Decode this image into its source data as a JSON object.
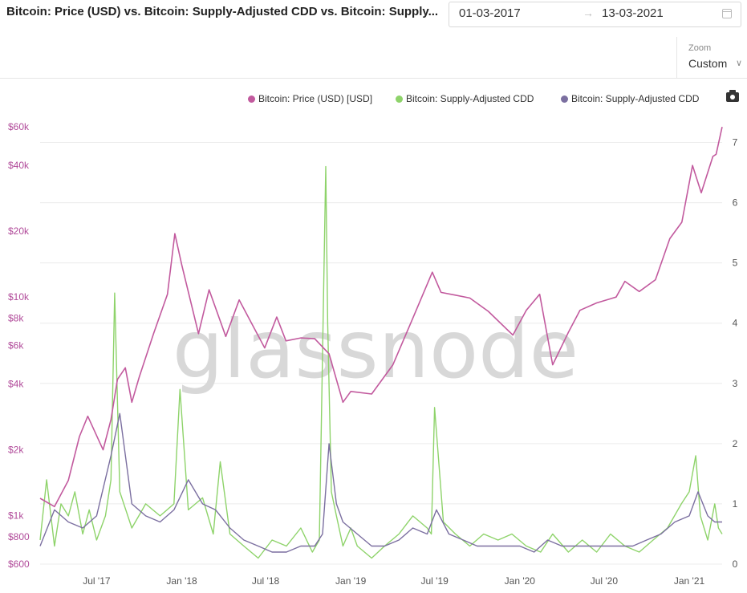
{
  "header": {
    "title": "Bitcoin: Price (USD) vs. Bitcoin: Supply-Adjusted CDD vs. Bitcoin: Supply...",
    "date_start": "01-03-2017",
    "date_arrow": "→",
    "date_end": "13-03-2021"
  },
  "zoom": {
    "label": "Zoom",
    "value": "Custom",
    "chevron": "∨"
  },
  "watermark": "glassnode",
  "colors": {
    "price": "#c25a9e",
    "cdd": "#8ed36a",
    "cdd_avg": "#7b6fa0"
  },
  "chart_data": {
    "type": "line",
    "title": "Bitcoin: Price (USD) vs. Bitcoin: Supply-Adjusted CDD vs. Bitcoin: Supply...",
    "x_ticks": [
      "Jul '17",
      "Jan '18",
      "Jul '18",
      "Jan '19",
      "Jul '19",
      "Jan '20",
      "Jul '20",
      "Jan '21"
    ],
    "y_left": {
      "scale": "log",
      "ticks": [
        "$600",
        "$800",
        "$1k",
        "$2k",
        "$4k",
        "$6k",
        "$8k",
        "$10k",
        "$20k",
        "$40k",
        "$60k"
      ],
      "values": [
        600,
        800,
        1000,
        2000,
        4000,
        6000,
        8000,
        10000,
        20000,
        40000,
        60000
      ]
    },
    "y_right": {
      "scale": "linear",
      "ticks": [
        "0",
        "1",
        "2",
        "3",
        "4",
        "5",
        "6",
        "7"
      ],
      "range": [
        0,
        7.5
      ]
    },
    "grid": true,
    "legend_position": "top-right",
    "series": [
      {
        "name": "Bitcoin: Price (USD) [USD]",
        "axis": "left",
        "x": [
          "2017-03-01",
          "2017-04-01",
          "2017-05-01",
          "2017-05-25",
          "2017-06-12",
          "2017-07-15",
          "2017-08-01",
          "2017-08-15",
          "2017-09-01",
          "2017-09-15",
          "2017-10-01",
          "2017-11-01",
          "2017-12-01",
          "2017-12-17",
          "2018-01-01",
          "2018-02-06",
          "2018-03-01",
          "2018-04-06",
          "2018-05-05",
          "2018-06-29",
          "2018-07-25",
          "2018-08-14",
          "2018-09-15",
          "2018-10-15",
          "2018-11-15",
          "2018-12-15",
          "2019-01-01",
          "2019-02-15",
          "2019-04-02",
          "2019-05-15",
          "2019-06-26",
          "2019-07-15",
          "2019-08-15",
          "2019-09-15",
          "2019-10-25",
          "2019-12-17",
          "2020-01-15",
          "2020-02-13",
          "2020-03-12",
          "2020-04-15",
          "2020-05-10",
          "2020-06-15",
          "2020-07-27",
          "2020-08-15",
          "2020-09-15",
          "2020-10-20",
          "2020-11-20",
          "2020-12-16",
          "2021-01-08",
          "2021-01-27",
          "2021-02-21",
          "2021-02-28",
          "2021-03-13"
        ],
        "y": [
          1200,
          1100,
          1450,
          2300,
          2850,
          2000,
          2750,
          4200,
          4750,
          3300,
          4300,
          6800,
          10300,
          19500,
          14000,
          6800,
          10800,
          6600,
          9700,
          5850,
          8100,
          6300,
          6500,
          6450,
          5500,
          3300,
          3700,
          3600,
          4900,
          8000,
          13000,
          10500,
          10200,
          9900,
          8600,
          6700,
          8700,
          10300,
          4900,
          6900,
          8700,
          9400,
          10000,
          11800,
          10600,
          12000,
          18500,
          22000,
          40000,
          30000,
          44000,
          45000,
          60000
        ]
      },
      {
        "name": "Bitcoin: Supply-Adjusted CDD",
        "axis": "right",
        "x": [
          "2017-03-01",
          "2017-03-15",
          "2017-04-01",
          "2017-04-15",
          "2017-05-01",
          "2017-05-15",
          "2017-06-01",
          "2017-06-15",
          "2017-07-01",
          "2017-07-20",
          "2017-08-01",
          "2017-08-09",
          "2017-08-20",
          "2017-09-15",
          "2017-10-15",
          "2017-11-15",
          "2017-12-15",
          "2017-12-28",
          "2018-01-15",
          "2018-02-15",
          "2018-03-10",
          "2018-03-25",
          "2018-04-15",
          "2018-05-15",
          "2018-06-15",
          "2018-07-15",
          "2018-08-15",
          "2018-09-15",
          "2018-10-10",
          "2018-10-25",
          "2018-11-08",
          "2018-11-12",
          "2018-11-20",
          "2018-12-01",
          "2018-12-15",
          "2019-01-01",
          "2019-01-15",
          "2019-02-15",
          "2019-03-15",
          "2019-04-15",
          "2019-05-15",
          "2019-06-15",
          "2019-06-24",
          "2019-07-01",
          "2019-07-20",
          "2019-08-15",
          "2019-09-15",
          "2019-10-15",
          "2019-11-15",
          "2019-12-15",
          "2020-01-15",
          "2020-02-15",
          "2020-03-12",
          "2020-04-15",
          "2020-05-15",
          "2020-06-15",
          "2020-07-15",
          "2020-08-15",
          "2020-09-15",
          "2020-10-15",
          "2020-11-15",
          "2020-12-15",
          "2021-01-01",
          "2021-01-15",
          "2021-01-25",
          "2021-02-10",
          "2021-02-25",
          "2021-03-05",
          "2021-03-13"
        ],
        "y": [
          0.4,
          1.4,
          0.3,
          1.0,
          0.8,
          1.2,
          0.5,
          0.9,
          0.4,
          0.8,
          1.4,
          4.5,
          1.2,
          0.6,
          1.0,
          0.8,
          1.0,
          2.9,
          0.9,
          1.1,
          0.5,
          1.7,
          0.5,
          0.3,
          0.1,
          0.4,
          0.3,
          0.6,
          0.2,
          0.4,
          6.6,
          4.0,
          1.2,
          0.8,
          0.3,
          0.6,
          0.3,
          0.1,
          0.3,
          0.5,
          0.8,
          0.6,
          0.5,
          2.6,
          0.7,
          0.5,
          0.3,
          0.5,
          0.4,
          0.5,
          0.3,
          0.2,
          0.5,
          0.2,
          0.4,
          0.2,
          0.5,
          0.3,
          0.2,
          0.4,
          0.6,
          1.0,
          1.2,
          1.8,
          0.8,
          0.4,
          1.0,
          0.6,
          0.5
        ]
      },
      {
        "name": "Bitcoin: Supply-Adjusted CDD",
        "axis": "right",
        "x": [
          "2017-03-01",
          "2017-04-01",
          "2017-05-01",
          "2017-06-01",
          "2017-07-01",
          "2017-08-01",
          "2017-08-20",
          "2017-09-15",
          "2017-10-15",
          "2017-11-15",
          "2017-12-15",
          "2018-01-15",
          "2018-02-15",
          "2018-03-15",
          "2018-04-15",
          "2018-05-15",
          "2018-06-15",
          "2018-07-15",
          "2018-08-15",
          "2018-09-15",
          "2018-10-15",
          "2018-11-01",
          "2018-11-15",
          "2018-12-01",
          "2018-12-15",
          "2019-01-15",
          "2019-02-15",
          "2019-03-15",
          "2019-04-15",
          "2019-05-15",
          "2019-06-15",
          "2019-07-05",
          "2019-08-01",
          "2019-09-01",
          "2019-10-01",
          "2019-11-01",
          "2019-12-01",
          "2020-01-01",
          "2020-02-01",
          "2020-03-01",
          "2020-04-01",
          "2020-05-01",
          "2020-06-01",
          "2020-07-01",
          "2020-08-01",
          "2020-09-01",
          "2020-10-01",
          "2020-11-01",
          "2020-12-01",
          "2021-01-01",
          "2021-01-20",
          "2021-02-10",
          "2021-02-25",
          "2021-03-13"
        ],
        "y": [
          0.3,
          0.9,
          0.7,
          0.6,
          0.8,
          1.8,
          2.5,
          1.0,
          0.8,
          0.7,
          0.9,
          1.4,
          1.0,
          0.9,
          0.6,
          0.4,
          0.3,
          0.2,
          0.2,
          0.3,
          0.3,
          0.5,
          2.0,
          1.0,
          0.7,
          0.5,
          0.3,
          0.3,
          0.4,
          0.6,
          0.5,
          0.9,
          0.5,
          0.4,
          0.3,
          0.3,
          0.3,
          0.3,
          0.2,
          0.4,
          0.3,
          0.3,
          0.3,
          0.3,
          0.3,
          0.3,
          0.4,
          0.5,
          0.7,
          0.8,
          1.2,
          0.8,
          0.7,
          0.7
        ]
      }
    ]
  }
}
